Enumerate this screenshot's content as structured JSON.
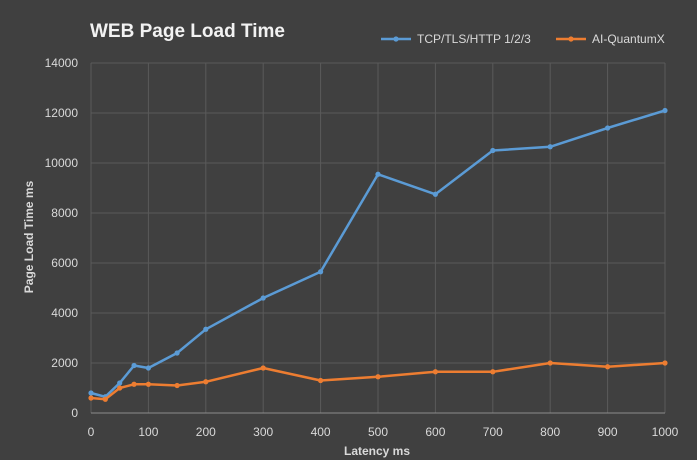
{
  "chart_data": {
    "type": "line",
    "title": "WEB Page Load Time",
    "xlabel": "Latency ms",
    "ylabel": "Page Load Time ms",
    "xlim": [
      0,
      1000
    ],
    "ylim": [
      0,
      14000
    ],
    "x_ticks": [
      0,
      100,
      200,
      300,
      400,
      500,
      600,
      700,
      800,
      900,
      1000
    ],
    "y_ticks": [
      0,
      2000,
      4000,
      6000,
      8000,
      10000,
      12000,
      14000
    ],
    "grid": true,
    "legend_position": "top-right",
    "series": [
      {
        "name": "TCP/TLS/HTTP 1/2/3",
        "color": "#5b9bd5",
        "points": [
          [
            0,
            800
          ],
          [
            25,
            650
          ],
          [
            50,
            1200
          ],
          [
            75,
            1900
          ],
          [
            100,
            1800
          ],
          [
            150,
            2400
          ],
          [
            200,
            3350
          ],
          [
            300,
            4600
          ],
          [
            400,
            5650
          ],
          [
            500,
            9550
          ],
          [
            600,
            8750
          ],
          [
            700,
            10500
          ],
          [
            800,
            10650
          ],
          [
            900,
            11400
          ],
          [
            1000,
            12100
          ]
        ]
      },
      {
        "name": "AI-QuantumX",
        "color": "#ed7d31",
        "points": [
          [
            0,
            600
          ],
          [
            25,
            550
          ],
          [
            50,
            1000
          ],
          [
            75,
            1150
          ],
          [
            100,
            1150
          ],
          [
            150,
            1100
          ],
          [
            200,
            1250
          ],
          [
            300,
            1800
          ],
          [
            400,
            1300
          ],
          [
            500,
            1450
          ],
          [
            600,
            1650
          ],
          [
            700,
            1650
          ],
          [
            800,
            2000
          ],
          [
            900,
            1850
          ],
          [
            1000,
            2000
          ]
        ]
      }
    ]
  }
}
